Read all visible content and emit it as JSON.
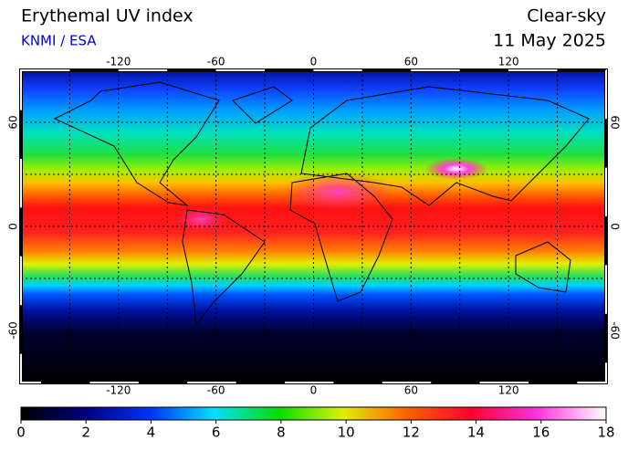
{
  "header": {
    "title": "Erythemal UV index",
    "source": "KNMI / ESA",
    "sky": "Clear-sky",
    "date": "11 May 2025"
  },
  "map": {
    "lon_ticks": [
      -120,
      -60,
      0,
      60,
      120
    ],
    "lat_ticks": [
      60,
      0,
      -60
    ],
    "lonlim": [
      -180,
      180
    ],
    "latlim": [
      -90,
      90
    ]
  },
  "colorbar": {
    "lim": [
      0,
      18
    ],
    "ticks": [
      0,
      2,
      4,
      6,
      8,
      10,
      12,
      14,
      16,
      18
    ]
  }
}
